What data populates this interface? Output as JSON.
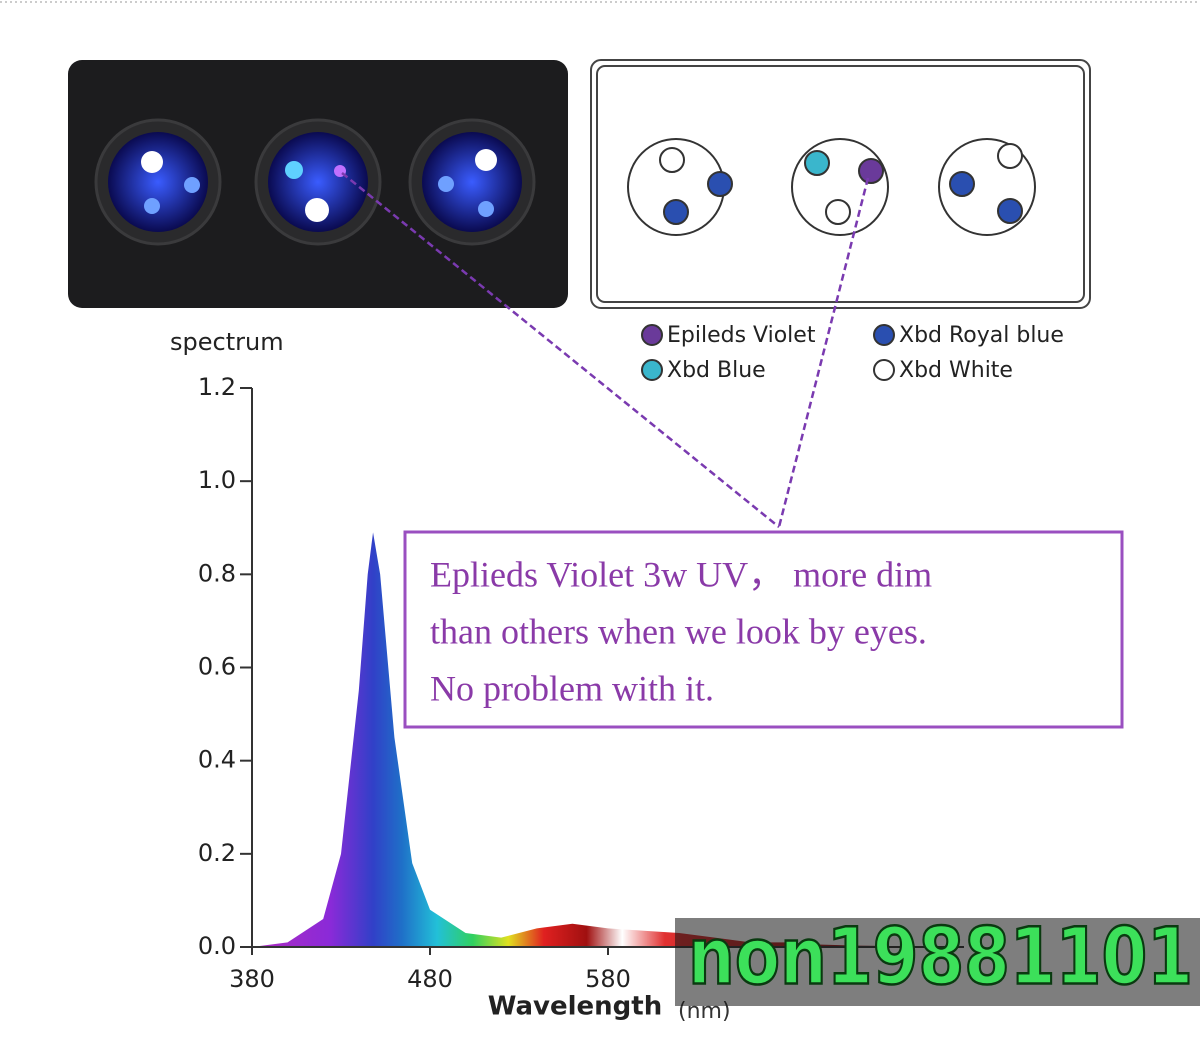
{
  "chart_data": {
    "type": "area",
    "y_label": "spectrum",
    "x_label": "Wavelength",
    "x_unit": "(nm)",
    "x": [
      380,
      400,
      420,
      430,
      440,
      445,
      448,
      452,
      460,
      470,
      480,
      500,
      520,
      540,
      560,
      580,
      600,
      620,
      640,
      660,
      680,
      700,
      720,
      740,
      760,
      780
    ],
    "values": [
      0,
      0.01,
      0.06,
      0.2,
      0.55,
      0.8,
      0.89,
      0.8,
      0.45,
      0.18,
      0.08,
      0.03,
      0.02,
      0.04,
      0.05,
      0.04,
      0.035,
      0.03,
      0.02,
      0.01,
      0.01,
      0.005,
      0.003,
      0.002,
      0.001,
      0
    ],
    "xlim": [
      380,
      780
    ],
    "ylim": [
      0,
      1.2
    ],
    "xticks": [
      380,
      480,
      580
    ],
    "yticks": [
      {
        "value": 0,
        "label": "0.0"
      },
      0.2,
      0.4,
      0.6,
      0.8,
      {
        "value": 1,
        "label": "1.0"
      },
      1.2
    ]
  },
  "diagram": {
    "legend": [
      {
        "label": "Epileds Violet",
        "color": "#6a3a9a"
      },
      {
        "label": "Xbd Royal blue",
        "color": "#2a4fb0"
      },
      {
        "label": "Xbd Blue",
        "color": "#3ab6cc"
      },
      {
        "label": "Xbd White",
        "color": "#ffffff"
      }
    ]
  },
  "annotation": [
    "Eplieds Violet 3w UV， more dim",
    "than others when we look by eyes.",
    "No problem with it."
  ],
  "watermark": "non19881101"
}
